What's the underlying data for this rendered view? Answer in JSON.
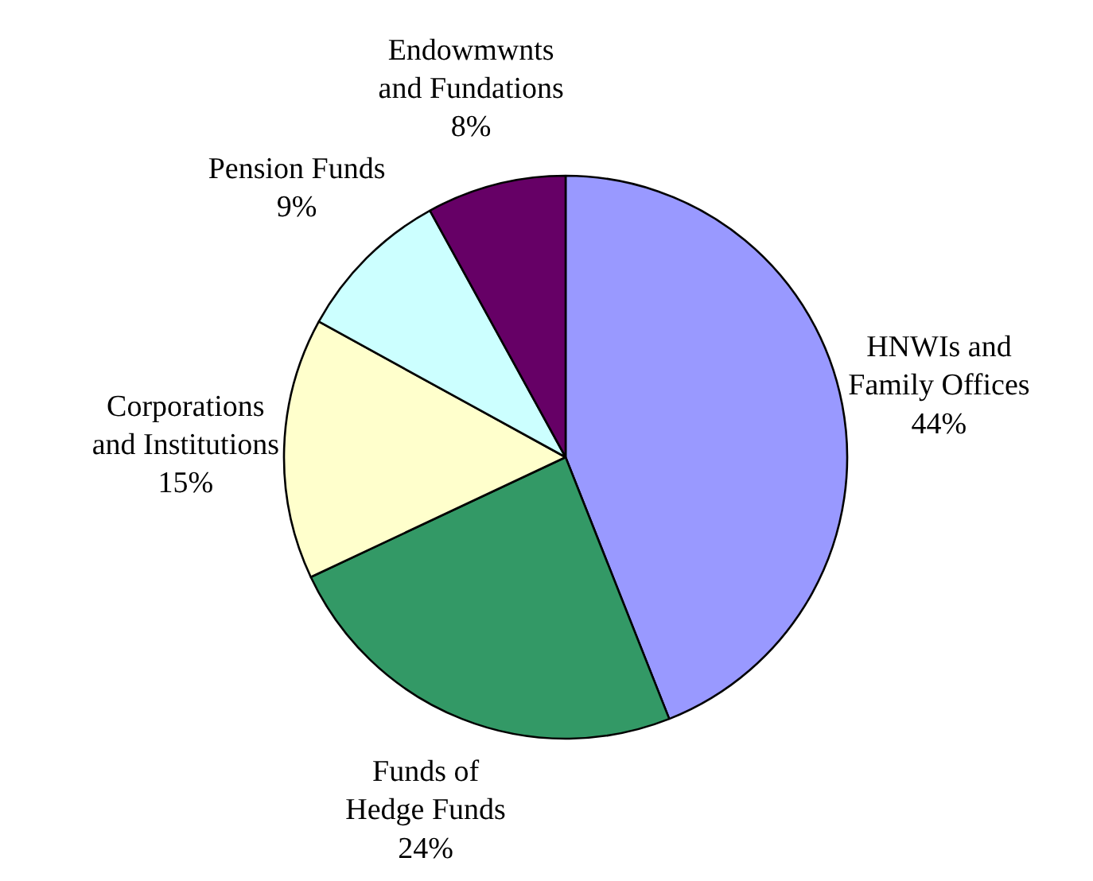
{
  "chart_data": {
    "type": "pie",
    "categories": [
      "HNWIs and\nFamily Offices",
      "Funds of\nHedge Funds",
      "Corporations\nand Institutions",
      "Pension Funds",
      "Endowmwnts\nand Fundations"
    ],
    "values": [
      44,
      24,
      15,
      9,
      8
    ],
    "colors": [
      "#9999ff",
      "#339966",
      "#ffffcc",
      "#ccffff",
      "#660066"
    ],
    "value_labels": [
      "44%",
      "24%",
      "15%",
      "9%",
      "8%"
    ]
  }
}
